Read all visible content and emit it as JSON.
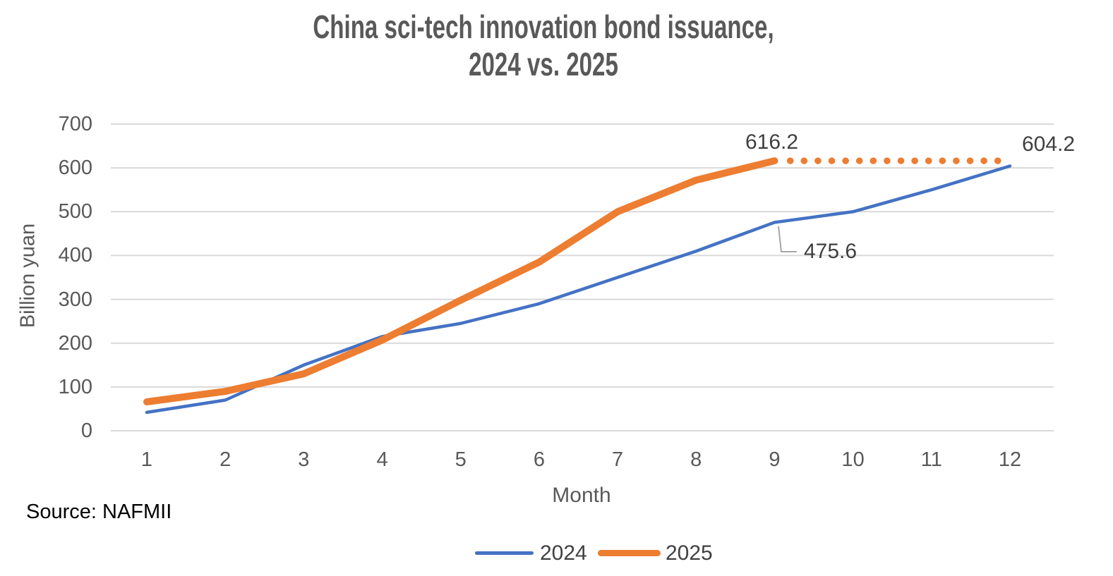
{
  "header": {
    "line1": "China sci-tech innovation bond issuance,",
    "line2": "2024 vs. 2025"
  },
  "source": {
    "text": "Source: NAFMII"
  },
  "legend": {
    "items": [
      {
        "label": "2024",
        "color": "#4472C4"
      },
      {
        "label": "2025",
        "color": "#ED7D31"
      }
    ]
  },
  "chart_data": {
    "type": "line",
    "title": "China sci-tech innovation bond issuance, 2024 vs. 2025",
    "xlabel": "Month",
    "ylabel": "Billion yuan",
    "categories": [
      1,
      2,
      3,
      4,
      5,
      6,
      7,
      8,
      9,
      10,
      11,
      12
    ],
    "ylim": [
      0,
      700
    ],
    "ytick_step": 100,
    "grid": true,
    "legend_position": "bottom",
    "colors": {
      "series_2024": "#4472C4",
      "series_2025": "#ED7D31",
      "gridline": "#D9D9D9",
      "callout": "#A6A6A6",
      "title_text": "#595959",
      "annotation_text": "#404040"
    },
    "series": [
      {
        "name": "2024",
        "color": "#4472C4",
        "style": "solid",
        "width": 4.5,
        "x": [
          1,
          2,
          3,
          4,
          5,
          6,
          7,
          8,
          9,
          10,
          11,
          12
        ],
        "values": [
          42,
          70,
          150,
          215,
          245,
          290,
          350,
          410,
          475.6,
          500,
          550,
          604.2
        ]
      },
      {
        "name": "2025",
        "color": "#ED7D31",
        "style": "solid",
        "width": 10,
        "x": [
          1,
          2,
          3,
          4,
          5,
          6,
          7,
          8,
          9
        ],
        "values": [
          66,
          90,
          130,
          207,
          298,
          385,
          500,
          572,
          616.2
        ]
      },
      {
        "name": "2025 dotted extension",
        "color": "#ED7D31",
        "style": "dotted",
        "width": 9.5,
        "x": [
          9.2,
          11.9
        ],
        "values": [
          616.2,
          616.2
        ],
        "in_legend": false
      }
    ],
    "annotations": [
      {
        "text": "616.2",
        "series": "2025",
        "month": 9,
        "value": 616.2
      },
      {
        "text": "475.6",
        "series": "2024",
        "month": 9,
        "value": 475.6
      },
      {
        "text": "604.2",
        "series": "2024",
        "month": 12,
        "value": 604.2
      }
    ]
  }
}
